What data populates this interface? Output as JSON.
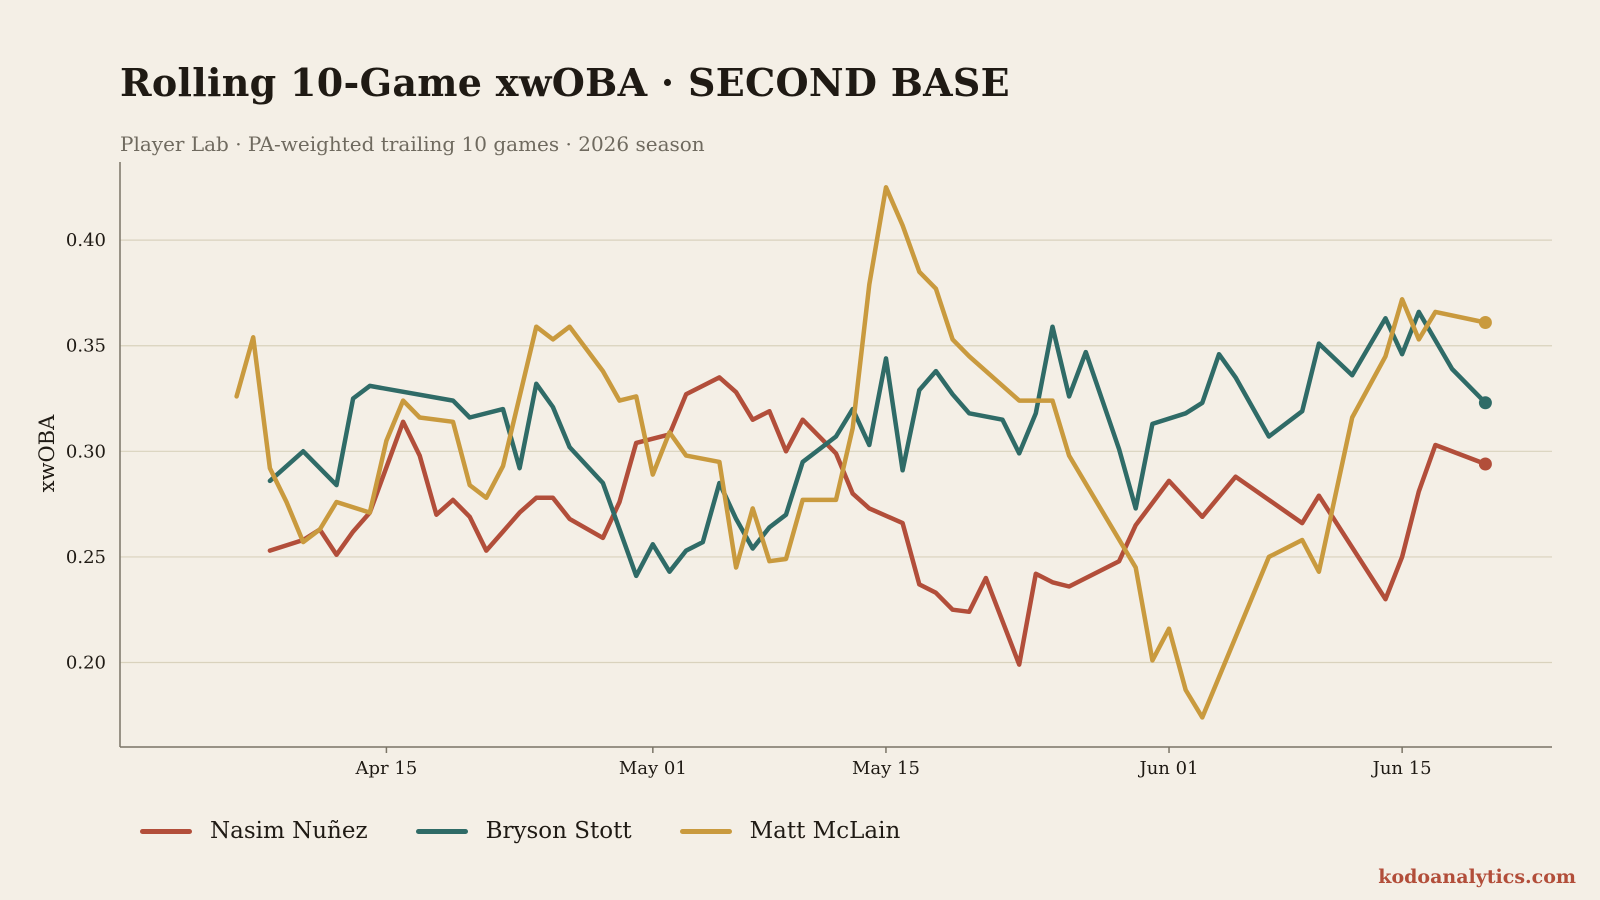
{
  "chart_data": {
    "type": "line",
    "title": "Rolling 10-Game xwOBA  ·  SECOND BASE",
    "subtitle": "Player Lab  ·  PA-weighted trailing 10 games  ·  2026 season",
    "xlabel": "",
    "ylabel": "xwOBA",
    "xlim": [
      "2026-03-30",
      "2026-06-24"
    ],
    "ylim": [
      0.16,
      0.437
    ],
    "yticks": [
      0.2,
      0.25,
      0.3,
      0.35,
      0.4
    ],
    "ytick_labels": [
      "0.20",
      "0.25",
      "0.30",
      "0.35",
      "0.40"
    ],
    "xticks": [
      "2026-04-15",
      "2026-05-01",
      "2026-05-15",
      "2026-06-01",
      "2026-06-15"
    ],
    "xtick_labels": [
      "Apr 15",
      "May 01",
      "May 15",
      "Jun 01",
      "Jun 15"
    ],
    "grid": "horizontal",
    "legend_position": "bottom-left",
    "series": [
      {
        "name": "Nasim Nuñez",
        "color": "#b24e3a",
        "points": [
          [
            "2026-04-08",
            0.253
          ],
          [
            "2026-04-10",
            0.258
          ],
          [
            "2026-04-11",
            0.263
          ],
          [
            "2026-04-12",
            0.251
          ],
          [
            "2026-04-13",
            0.262
          ],
          [
            "2026-04-14",
            0.271
          ],
          [
            "2026-04-16",
            0.314
          ],
          [
            "2026-04-17",
            0.298
          ],
          [
            "2026-04-18",
            0.27
          ],
          [
            "2026-04-19",
            0.277
          ],
          [
            "2026-04-20",
            0.269
          ],
          [
            "2026-04-21",
            0.253
          ],
          [
            "2026-04-22",
            0.262
          ],
          [
            "2026-04-23",
            0.271
          ],
          [
            "2026-04-24",
            0.278
          ],
          [
            "2026-04-25",
            0.278
          ],
          [
            "2026-04-26",
            0.268
          ],
          [
            "2026-04-28",
            0.259
          ],
          [
            "2026-04-29",
            0.276
          ],
          [
            "2026-04-30",
            0.304
          ],
          [
            "2026-05-02",
            0.308
          ],
          [
            "2026-05-03",
            0.327
          ],
          [
            "2026-05-05",
            0.335
          ],
          [
            "2026-05-06",
            0.328
          ],
          [
            "2026-05-07",
            0.315
          ],
          [
            "2026-05-08",
            0.319
          ],
          [
            "2026-05-09",
            0.3
          ],
          [
            "2026-05-10",
            0.315
          ],
          [
            "2026-05-12",
            0.299
          ],
          [
            "2026-05-13",
            0.28
          ],
          [
            "2026-05-14",
            0.273
          ],
          [
            "2026-05-16",
            0.266
          ],
          [
            "2026-05-17",
            0.237
          ],
          [
            "2026-05-18",
            0.233
          ],
          [
            "2026-05-19",
            0.225
          ],
          [
            "2026-05-20",
            0.224
          ],
          [
            "2026-05-21",
            0.24
          ],
          [
            "2026-05-23",
            0.199
          ],
          [
            "2026-05-24",
            0.242
          ],
          [
            "2026-05-25",
            0.238
          ],
          [
            "2026-05-26",
            0.236
          ],
          [
            "2026-05-29",
            0.248
          ],
          [
            "2026-05-30",
            0.265
          ],
          [
            "2026-06-01",
            0.286
          ],
          [
            "2026-06-03",
            0.269
          ],
          [
            "2026-06-05",
            0.288
          ],
          [
            "2026-06-09",
            0.266
          ],
          [
            "2026-06-10",
            0.279
          ],
          [
            "2026-06-14",
            0.23
          ],
          [
            "2026-06-15",
            0.25
          ],
          [
            "2026-06-16",
            0.281
          ],
          [
            "2026-06-17",
            0.303
          ],
          [
            "2026-06-20",
            0.294
          ]
        ]
      },
      {
        "name": "Bryson Stott",
        "color": "#2f6b67",
        "points": [
          [
            "2026-04-08",
            0.286
          ],
          [
            "2026-04-10",
            0.3
          ],
          [
            "2026-04-12",
            0.284
          ],
          [
            "2026-04-13",
            0.325
          ],
          [
            "2026-04-14",
            0.331
          ],
          [
            "2026-04-19",
            0.324
          ],
          [
            "2026-04-20",
            0.316
          ],
          [
            "2026-04-22",
            0.32
          ],
          [
            "2026-04-23",
            0.292
          ],
          [
            "2026-04-24",
            0.332
          ],
          [
            "2026-04-25",
            0.321
          ],
          [
            "2026-04-26",
            0.302
          ],
          [
            "2026-04-28",
            0.285
          ],
          [
            "2026-04-30",
            0.241
          ],
          [
            "2026-05-01",
            0.256
          ],
          [
            "2026-05-02",
            0.243
          ],
          [
            "2026-05-03",
            0.253
          ],
          [
            "2026-05-04",
            0.257
          ],
          [
            "2026-05-05",
            0.285
          ],
          [
            "2026-05-06",
            0.268
          ],
          [
            "2026-05-07",
            0.254
          ],
          [
            "2026-05-08",
            0.264
          ],
          [
            "2026-05-09",
            0.27
          ],
          [
            "2026-05-10",
            0.295
          ],
          [
            "2026-05-12",
            0.307
          ],
          [
            "2026-05-13",
            0.32
          ],
          [
            "2026-05-14",
            0.303
          ],
          [
            "2026-05-15",
            0.344
          ],
          [
            "2026-05-16",
            0.291
          ],
          [
            "2026-05-17",
            0.329
          ],
          [
            "2026-05-18",
            0.338
          ],
          [
            "2026-05-19",
            0.327
          ],
          [
            "2026-05-20",
            0.318
          ],
          [
            "2026-05-22",
            0.315
          ],
          [
            "2026-05-23",
            0.299
          ],
          [
            "2026-05-24",
            0.318
          ],
          [
            "2026-05-25",
            0.359
          ],
          [
            "2026-05-26",
            0.326
          ],
          [
            "2026-05-27",
            0.347
          ],
          [
            "2026-05-29",
            0.301
          ],
          [
            "2026-05-30",
            0.273
          ],
          [
            "2026-05-31",
            0.313
          ],
          [
            "2026-06-02",
            0.318
          ],
          [
            "2026-06-03",
            0.323
          ],
          [
            "2026-06-04",
            0.346
          ],
          [
            "2026-06-05",
            0.335
          ],
          [
            "2026-06-07",
            0.307
          ],
          [
            "2026-06-09",
            0.319
          ],
          [
            "2026-06-10",
            0.351
          ],
          [
            "2026-06-12",
            0.336
          ],
          [
            "2026-06-14",
            0.363
          ],
          [
            "2026-06-15",
            0.346
          ],
          [
            "2026-06-16",
            0.366
          ],
          [
            "2026-06-18",
            0.339
          ],
          [
            "2026-06-20",
            0.323
          ]
        ]
      },
      {
        "name": "Matt McLain",
        "color": "#c99a3e",
        "points": [
          [
            "2026-04-06",
            0.326
          ],
          [
            "2026-04-07",
            0.354
          ],
          [
            "2026-04-08",
            0.292
          ],
          [
            "2026-04-09",
            0.276
          ],
          [
            "2026-04-10",
            0.257
          ],
          [
            "2026-04-11",
            0.263
          ],
          [
            "2026-04-12",
            0.276
          ],
          [
            "2026-04-14",
            0.271
          ],
          [
            "2026-04-15",
            0.305
          ],
          [
            "2026-04-16",
            0.324
          ],
          [
            "2026-04-17",
            0.316
          ],
          [
            "2026-04-19",
            0.314
          ],
          [
            "2026-04-20",
            0.284
          ],
          [
            "2026-04-21",
            0.278
          ],
          [
            "2026-04-22",
            0.293
          ],
          [
            "2026-04-24",
            0.359
          ],
          [
            "2026-04-25",
            0.353
          ],
          [
            "2026-04-26",
            0.359
          ],
          [
            "2026-04-28",
            0.338
          ],
          [
            "2026-04-29",
            0.324
          ],
          [
            "2026-04-30",
            0.326
          ],
          [
            "2026-05-01",
            0.289
          ],
          [
            "2026-05-02",
            0.309
          ],
          [
            "2026-05-03",
            0.298
          ],
          [
            "2026-05-05",
            0.295
          ],
          [
            "2026-05-06",
            0.245
          ],
          [
            "2026-05-07",
            0.273
          ],
          [
            "2026-05-08",
            0.248
          ],
          [
            "2026-05-09",
            0.249
          ],
          [
            "2026-05-10",
            0.277
          ],
          [
            "2026-05-12",
            0.277
          ],
          [
            "2026-05-13",
            0.311
          ],
          [
            "2026-05-14",
            0.379
          ],
          [
            "2026-05-15",
            0.425
          ],
          [
            "2026-05-16",
            0.407
          ],
          [
            "2026-05-17",
            0.385
          ],
          [
            "2026-05-18",
            0.377
          ],
          [
            "2026-05-19",
            0.353
          ],
          [
            "2026-05-20",
            0.345
          ],
          [
            "2026-05-23",
            0.324
          ],
          [
            "2026-05-25",
            0.324
          ],
          [
            "2026-05-26",
            0.298
          ],
          [
            "2026-05-30",
            0.245
          ],
          [
            "2026-05-31",
            0.201
          ],
          [
            "2026-06-01",
            0.216
          ],
          [
            "2026-06-02",
            0.187
          ],
          [
            "2026-06-03",
            0.174
          ],
          [
            "2026-06-07",
            0.25
          ],
          [
            "2026-06-09",
            0.258
          ],
          [
            "2026-06-10",
            0.243
          ],
          [
            "2026-06-12",
            0.316
          ],
          [
            "2026-06-14",
            0.345
          ],
          [
            "2026-06-15",
            0.372
          ],
          [
            "2026-06-16",
            0.353
          ],
          [
            "2026-06-17",
            0.366
          ],
          [
            "2026-06-20",
            0.361
          ]
        ]
      }
    ]
  },
  "footer": {
    "brand": "kodoanalytics.com"
  }
}
